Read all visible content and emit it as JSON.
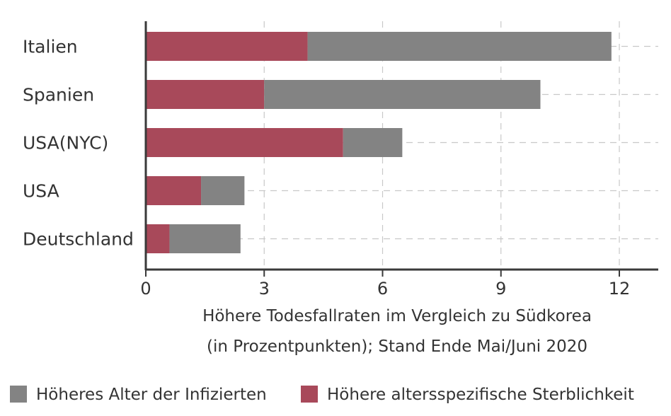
{
  "chart_data": {
    "type": "bar",
    "orientation": "horizontal",
    "stacked": true,
    "categories": [
      "Italien",
      "Spanien",
      "USA(NYC)",
      "USA",
      "Deutschland"
    ],
    "series": [
      {
        "name": "Höhere altersspezifische Sterblichkeit",
        "color": "#a8495a",
        "values": [
          4.1,
          3.0,
          5.0,
          1.4,
          0.6
        ]
      },
      {
        "name": "Höheres Alter der Infizierten",
        "color": "#838383",
        "values": [
          7.7,
          7.0,
          1.5,
          1.1,
          1.8
        ]
      }
    ],
    "xticks": [
      0,
      3,
      6,
      9,
      12
    ],
    "xlim": [
      0,
      13
    ],
    "xlabel_lines": [
      "Höhere Todesfallraten im Vergleich zu Südkorea",
      "(in Prozentpunkten); Stand Ende Mai/Juni 2020"
    ],
    "grid": "vertical dashed",
    "legend": {
      "position": "bottom",
      "items": [
        {
          "label": "Höheres Alter der Infizierten",
          "color": "#838383"
        },
        {
          "label": "Höhere altersspezifische Sterblichkeit",
          "color": "#a8495a"
        }
      ]
    }
  }
}
